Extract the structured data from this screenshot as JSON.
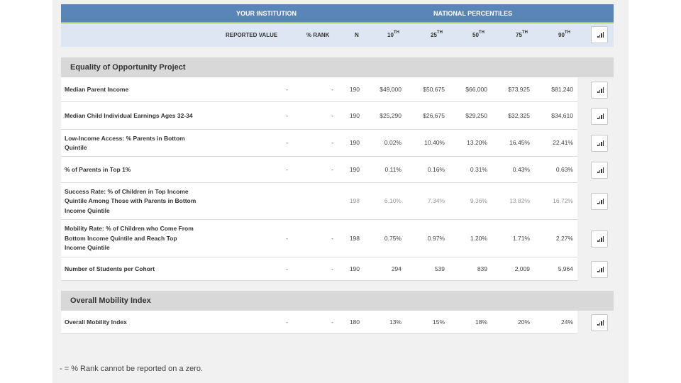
{
  "header": {
    "your_institution": "YOUR INSTITUTION",
    "national_percentiles": "NATIONAL PERCENTILES",
    "columns": {
      "reported_value": "REPORTED VALUE",
      "pct_rank": "% RANK",
      "n": "N",
      "p10": "10",
      "p25": "25",
      "p50": "50",
      "p75": "75",
      "p90": "90",
      "sup": "TH"
    }
  },
  "sections": [
    {
      "title": "Equality of Opportunity Project",
      "rows": [
        {
          "label": "Median Parent Income",
          "reported": "-",
          "rank": "-",
          "n": "190",
          "p10": "$49,000",
          "p25": "$50,675",
          "p50": "$66,000",
          "p75": "$73,925",
          "p90": "$81,240"
        },
        {
          "label": "Median Child Individual Earnings Ages 32-34",
          "reported": "-",
          "rank": "-",
          "n": "190",
          "p10": "$25,290",
          "p25": "$26,675",
          "p50": "$29,250",
          "p75": "$32,325",
          "p90": "$34,610"
        },
        {
          "label": "Low-Income Access: % Parents in Bottom Quintile",
          "reported": "-",
          "rank": "-",
          "n": "190",
          "p10": "0.02%",
          "p25": "10.40%",
          "p50": "13.20%",
          "p75": "16.45%",
          "p90": "22.41%"
        },
        {
          "label": "% of Parents in Top 1%",
          "reported": "-",
          "rank": "-",
          "n": "190",
          "p10": "0.11%",
          "p25": "0.16%",
          "p50": "0.31%",
          "p75": "0.43%",
          "p90": "0.63%"
        },
        {
          "label": "Success Rate: % of Children in Top Income Quintile Among Those with Parents in Bottom Income Quintile",
          "reported": "",
          "rank": "",
          "n": "198",
          "p10": "6.10%",
          "p25": "7.34%",
          "p50": "9.36%",
          "p75": "13.82%",
          "p90": "16.72%"
        },
        {
          "label": "Mobility Rate: % of Children who Come From Bottom Income Quintile and Reach Top Income Quintile",
          "reported": "-",
          "rank": "-",
          "n": "198",
          "p10": "0.75%",
          "p25": "0.97%",
          "p50": "1.20%",
          "p75": "1.71%",
          "p90": "2.27%"
        },
        {
          "label": "Number of Students per Cohort",
          "reported": "-",
          "rank": "-",
          "n": "190",
          "p10": "294",
          "p25": "539",
          "p50": "839",
          "p75": "2,009",
          "p90": "5,964"
        }
      ]
    },
    {
      "title": "Overall Mobility Index",
      "rows": [
        {
          "label": "Overall Mobility Index",
          "reported": "-",
          "rank": "-",
          "n": "180",
          "p10": "13%",
          "p25": "15%",
          "p50": "18%",
          "p75": "20%",
          "p90": "24%"
        }
      ]
    }
  ],
  "footnote": "- = % Rank cannot be reported on a zero."
}
